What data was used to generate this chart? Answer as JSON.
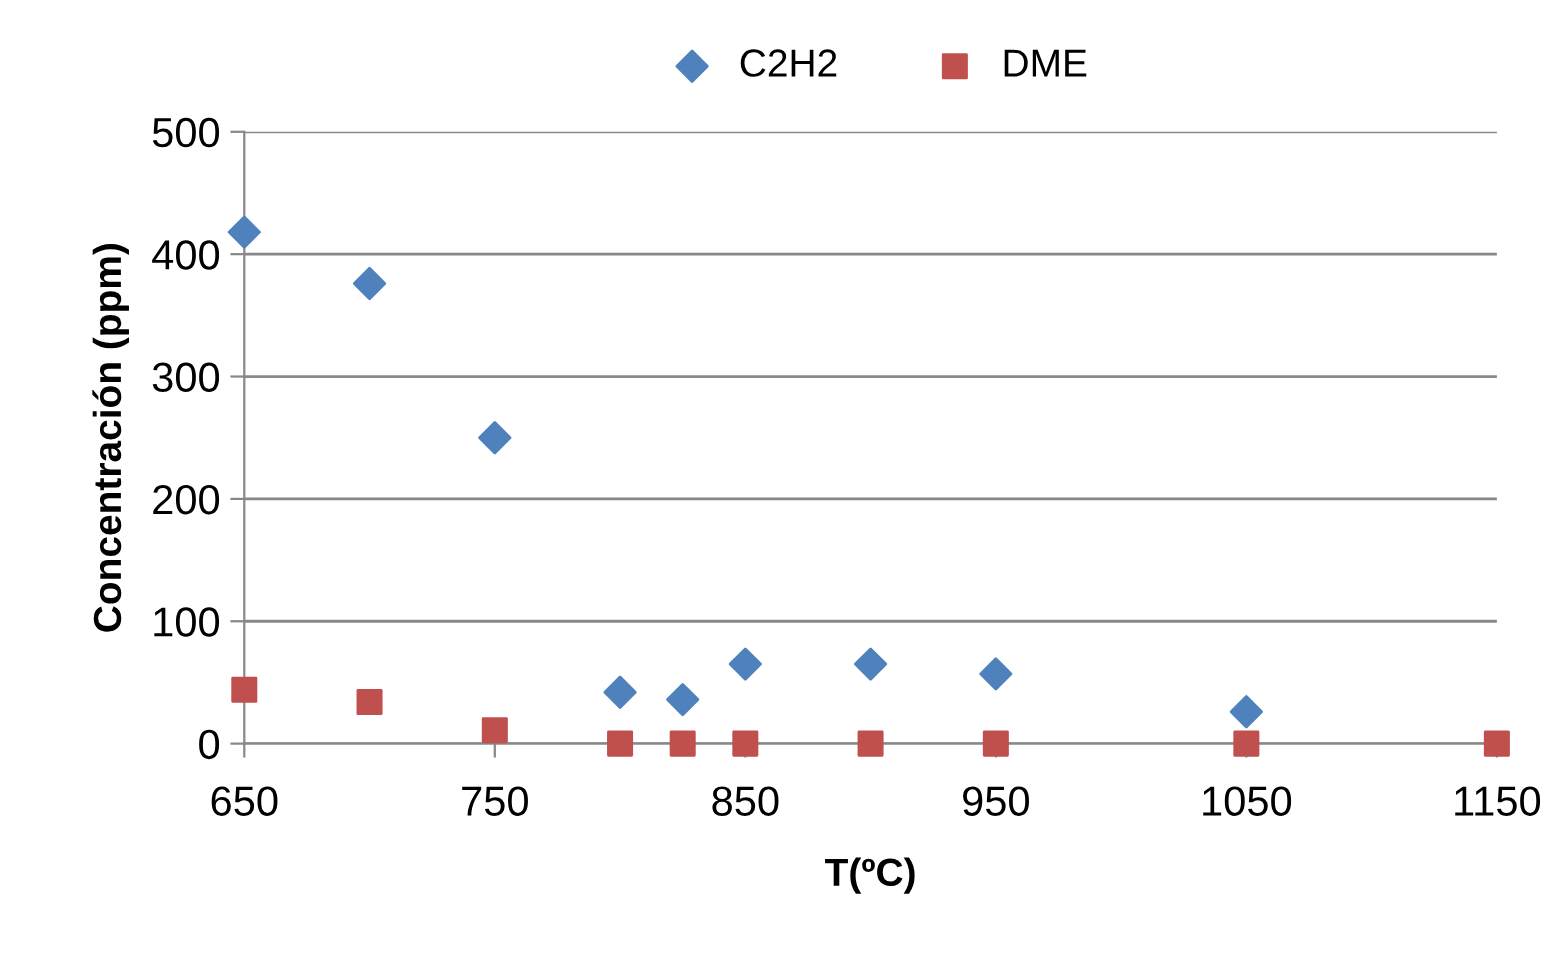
{
  "chart_data": {
    "type": "scatter",
    "xlabel": "T(ºC)",
    "ylabel": "Concentración (ppm)",
    "xlim": [
      650,
      1150
    ],
    "xticks": [
      650,
      750,
      850,
      950,
      1050,
      1150
    ],
    "ylim": [
      0,
      500
    ],
    "yticks": [
      0,
      100,
      200,
      300,
      400,
      500
    ],
    "grid": "y",
    "legend": "top",
    "series": [
      {
        "name": "C2H2",
        "color": "#4f81bd",
        "marker": "diamond",
        "x": [
          650,
          700,
          750,
          800,
          825,
          850,
          900,
          950,
          1050
        ],
        "values": [
          418,
          376,
          250,
          42,
          36,
          65,
          65,
          57,
          26
        ]
      },
      {
        "name": "DME",
        "color": "#c0504d",
        "marker": "square",
        "x": [
          650,
          700,
          750,
          800,
          825,
          850,
          900,
          950,
          1050,
          1150
        ],
        "values": [
          44,
          34,
          11,
          0,
          0,
          0,
          0,
          0,
          0,
          0
        ]
      }
    ]
  }
}
